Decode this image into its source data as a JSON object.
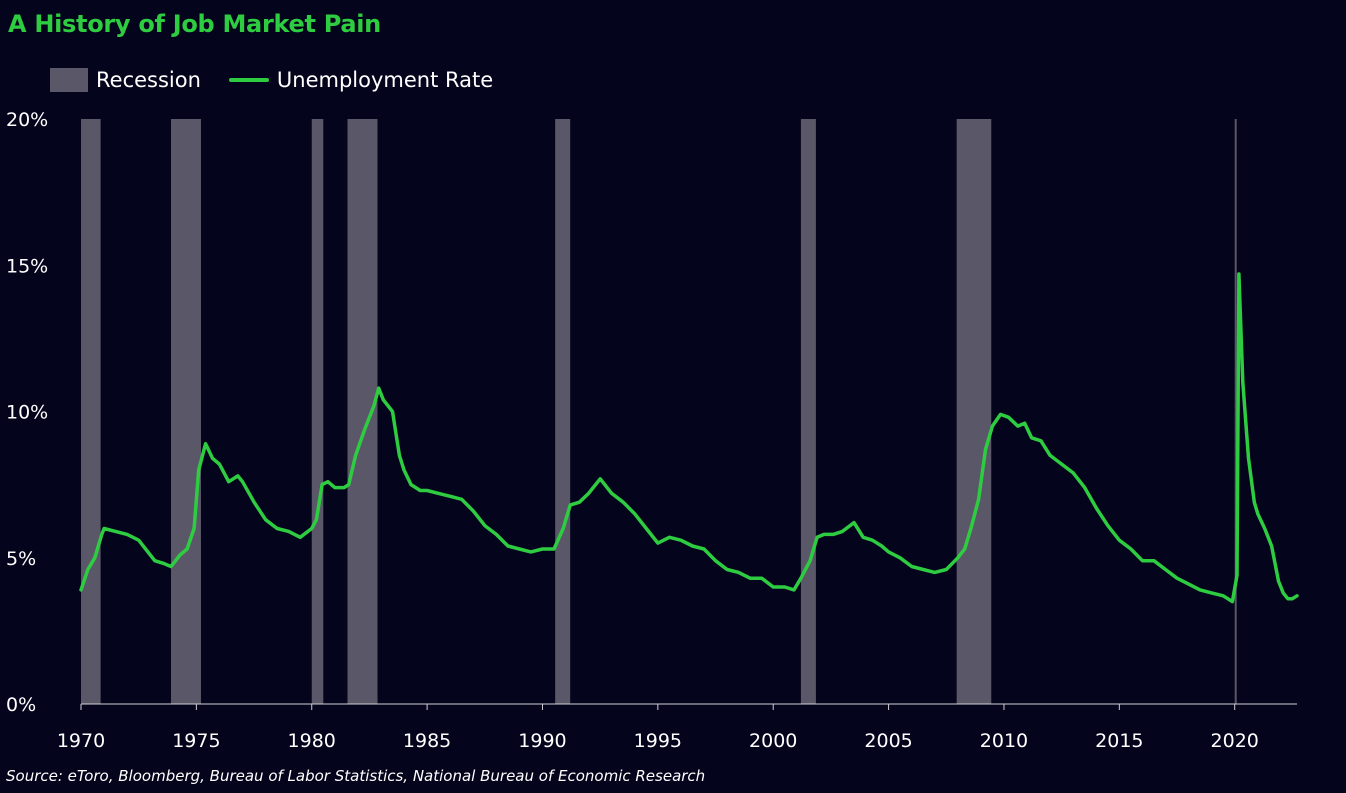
{
  "chart_data": {
    "type": "line",
    "title": "A History of Job Market Pain",
    "source": "Source: eToro, Bloomberg, Bureau of Labor Statistics, National Bureau of Economic Research",
    "legend": {
      "placement": "top-left",
      "items": [
        "Recession",
        "Unemployment Rate"
      ]
    },
    "colors": {
      "background": "#04041c",
      "line": "#2ecc40",
      "recession": "#5a5868",
      "title": "#2ecc40",
      "text": "#ffffff"
    },
    "xlim": [
      1970,
      2022.7
    ],
    "ylim": [
      0,
      20
    ],
    "x_ticks": [
      1970,
      1975,
      1980,
      1985,
      1990,
      1995,
      2000,
      2005,
      2010,
      2015,
      2020
    ],
    "y_ticks": [
      {
        "value": 0,
        "label": "0%"
      },
      {
        "value": 5,
        "label": "5%"
      },
      {
        "value": 10,
        "label": "10%"
      },
      {
        "value": 15,
        "label": "15%"
      },
      {
        "value": 20,
        "label": "20%"
      }
    ],
    "grid": false,
    "recessions": [
      {
        "start": 1970.0,
        "end": 1970.85
      },
      {
        "start": 1973.9,
        "end": 1975.2
      },
      {
        "start": 1980.0,
        "end": 1980.5
      },
      {
        "start": 1981.55,
        "end": 1982.85
      },
      {
        "start": 1990.55,
        "end": 1991.2
      },
      {
        "start": 2001.2,
        "end": 2001.85
      },
      {
        "start": 2007.95,
        "end": 2009.45
      },
      {
        "start": 2020.0,
        "end": 2020.05
      }
    ],
    "series": [
      {
        "name": "Unemployment Rate",
        "points": [
          [
            1970.0,
            3.9
          ],
          [
            1970.3,
            4.6
          ],
          [
            1970.6,
            5.0
          ],
          [
            1970.9,
            5.8
          ],
          [
            1971.0,
            6.0
          ],
          [
            1971.5,
            5.9
          ],
          [
            1972.0,
            5.8
          ],
          [
            1972.5,
            5.6
          ],
          [
            1972.9,
            5.2
          ],
          [
            1973.2,
            4.9
          ],
          [
            1973.6,
            4.8
          ],
          [
            1973.9,
            4.7
          ],
          [
            1974.3,
            5.1
          ],
          [
            1974.6,
            5.3
          ],
          [
            1974.9,
            6.0
          ],
          [
            1975.1,
            8.0
          ],
          [
            1975.4,
            8.9
          ],
          [
            1975.7,
            8.4
          ],
          [
            1976.0,
            8.2
          ],
          [
            1976.4,
            7.6
          ],
          [
            1976.8,
            7.8
          ],
          [
            1977.0,
            7.6
          ],
          [
            1977.5,
            6.9
          ],
          [
            1978.0,
            6.3
          ],
          [
            1978.5,
            6.0
          ],
          [
            1979.0,
            5.9
          ],
          [
            1979.5,
            5.7
          ],
          [
            1980.0,
            6.0
          ],
          [
            1980.2,
            6.3
          ],
          [
            1980.45,
            7.5
          ],
          [
            1980.7,
            7.6
          ],
          [
            1981.0,
            7.4
          ],
          [
            1981.4,
            7.4
          ],
          [
            1981.6,
            7.5
          ],
          [
            1981.9,
            8.5
          ],
          [
            1982.3,
            9.4
          ],
          [
            1982.7,
            10.2
          ],
          [
            1982.9,
            10.8
          ],
          [
            1983.1,
            10.4
          ],
          [
            1983.5,
            10.0
          ],
          [
            1983.8,
            8.5
          ],
          [
            1984.0,
            8.0
          ],
          [
            1984.3,
            7.5
          ],
          [
            1984.7,
            7.3
          ],
          [
            1985.0,
            7.3
          ],
          [
            1985.5,
            7.2
          ],
          [
            1986.0,
            7.1
          ],
          [
            1986.5,
            7.0
          ],
          [
            1987.0,
            6.6
          ],
          [
            1987.5,
            6.1
          ],
          [
            1988.0,
            5.8
          ],
          [
            1988.5,
            5.4
          ],
          [
            1989.0,
            5.3
          ],
          [
            1989.5,
            5.2
          ],
          [
            1990.0,
            5.3
          ],
          [
            1990.5,
            5.3
          ],
          [
            1990.9,
            6.0
          ],
          [
            1991.2,
            6.8
          ],
          [
            1991.6,
            6.9
          ],
          [
            1992.0,
            7.2
          ],
          [
            1992.5,
            7.7
          ],
          [
            1993.0,
            7.2
          ],
          [
            1993.5,
            6.9
          ],
          [
            1994.0,
            6.5
          ],
          [
            1994.5,
            6.0
          ],
          [
            1995.0,
            5.5
          ],
          [
            1995.5,
            5.7
          ],
          [
            1996.0,
            5.6
          ],
          [
            1996.5,
            5.4
          ],
          [
            1997.0,
            5.3
          ],
          [
            1997.5,
            4.9
          ],
          [
            1998.0,
            4.6
          ],
          [
            1998.5,
            4.5
          ],
          [
            1999.0,
            4.3
          ],
          [
            1999.5,
            4.3
          ],
          [
            2000.0,
            4.0
          ],
          [
            2000.5,
            4.0
          ],
          [
            2000.9,
            3.9
          ],
          [
            2001.2,
            4.3
          ],
          [
            2001.6,
            4.9
          ],
          [
            2001.9,
            5.7
          ],
          [
            2002.2,
            5.8
          ],
          [
            2002.6,
            5.8
          ],
          [
            2003.0,
            5.9
          ],
          [
            2003.5,
            6.2
          ],
          [
            2003.9,
            5.7
          ],
          [
            2004.3,
            5.6
          ],
          [
            2004.7,
            5.4
          ],
          [
            2005.0,
            5.2
          ],
          [
            2005.5,
            5.0
          ],
          [
            2006.0,
            4.7
          ],
          [
            2006.5,
            4.6
          ],
          [
            2007.0,
            4.5
          ],
          [
            2007.5,
            4.6
          ],
          [
            2008.0,
            5.0
          ],
          [
            2008.3,
            5.3
          ],
          [
            2008.6,
            6.1
          ],
          [
            2008.9,
            7.0
          ],
          [
            2009.2,
            8.7
          ],
          [
            2009.5,
            9.5
          ],
          [
            2009.85,
            9.9
          ],
          [
            2010.2,
            9.8
          ],
          [
            2010.6,
            9.5
          ],
          [
            2010.9,
            9.6
          ],
          [
            2011.2,
            9.1
          ],
          [
            2011.6,
            9.0
          ],
          [
            2012.0,
            8.5
          ],
          [
            2012.5,
            8.2
          ],
          [
            2013.0,
            7.9
          ],
          [
            2013.5,
            7.4
          ],
          [
            2014.0,
            6.7
          ],
          [
            2014.5,
            6.1
          ],
          [
            2015.0,
            5.6
          ],
          [
            2015.5,
            5.3
          ],
          [
            2016.0,
            4.9
          ],
          [
            2016.5,
            4.9
          ],
          [
            2017.0,
            4.6
          ],
          [
            2017.5,
            4.3
          ],
          [
            2018.0,
            4.1
          ],
          [
            2018.5,
            3.9
          ],
          [
            2019.0,
            3.8
          ],
          [
            2019.5,
            3.7
          ],
          [
            2019.9,
            3.5
          ],
          [
            2020.1,
            4.4
          ],
          [
            2020.18,
            14.7
          ],
          [
            2020.35,
            11.0
          ],
          [
            2020.6,
            8.4
          ],
          [
            2020.85,
            6.9
          ],
          [
            2021.0,
            6.5
          ],
          [
            2021.3,
            6.0
          ],
          [
            2021.6,
            5.4
          ],
          [
            2021.9,
            4.2
          ],
          [
            2022.1,
            3.8
          ],
          [
            2022.3,
            3.6
          ],
          [
            2022.5,
            3.6
          ],
          [
            2022.7,
            3.7
          ]
        ]
      }
    ]
  }
}
